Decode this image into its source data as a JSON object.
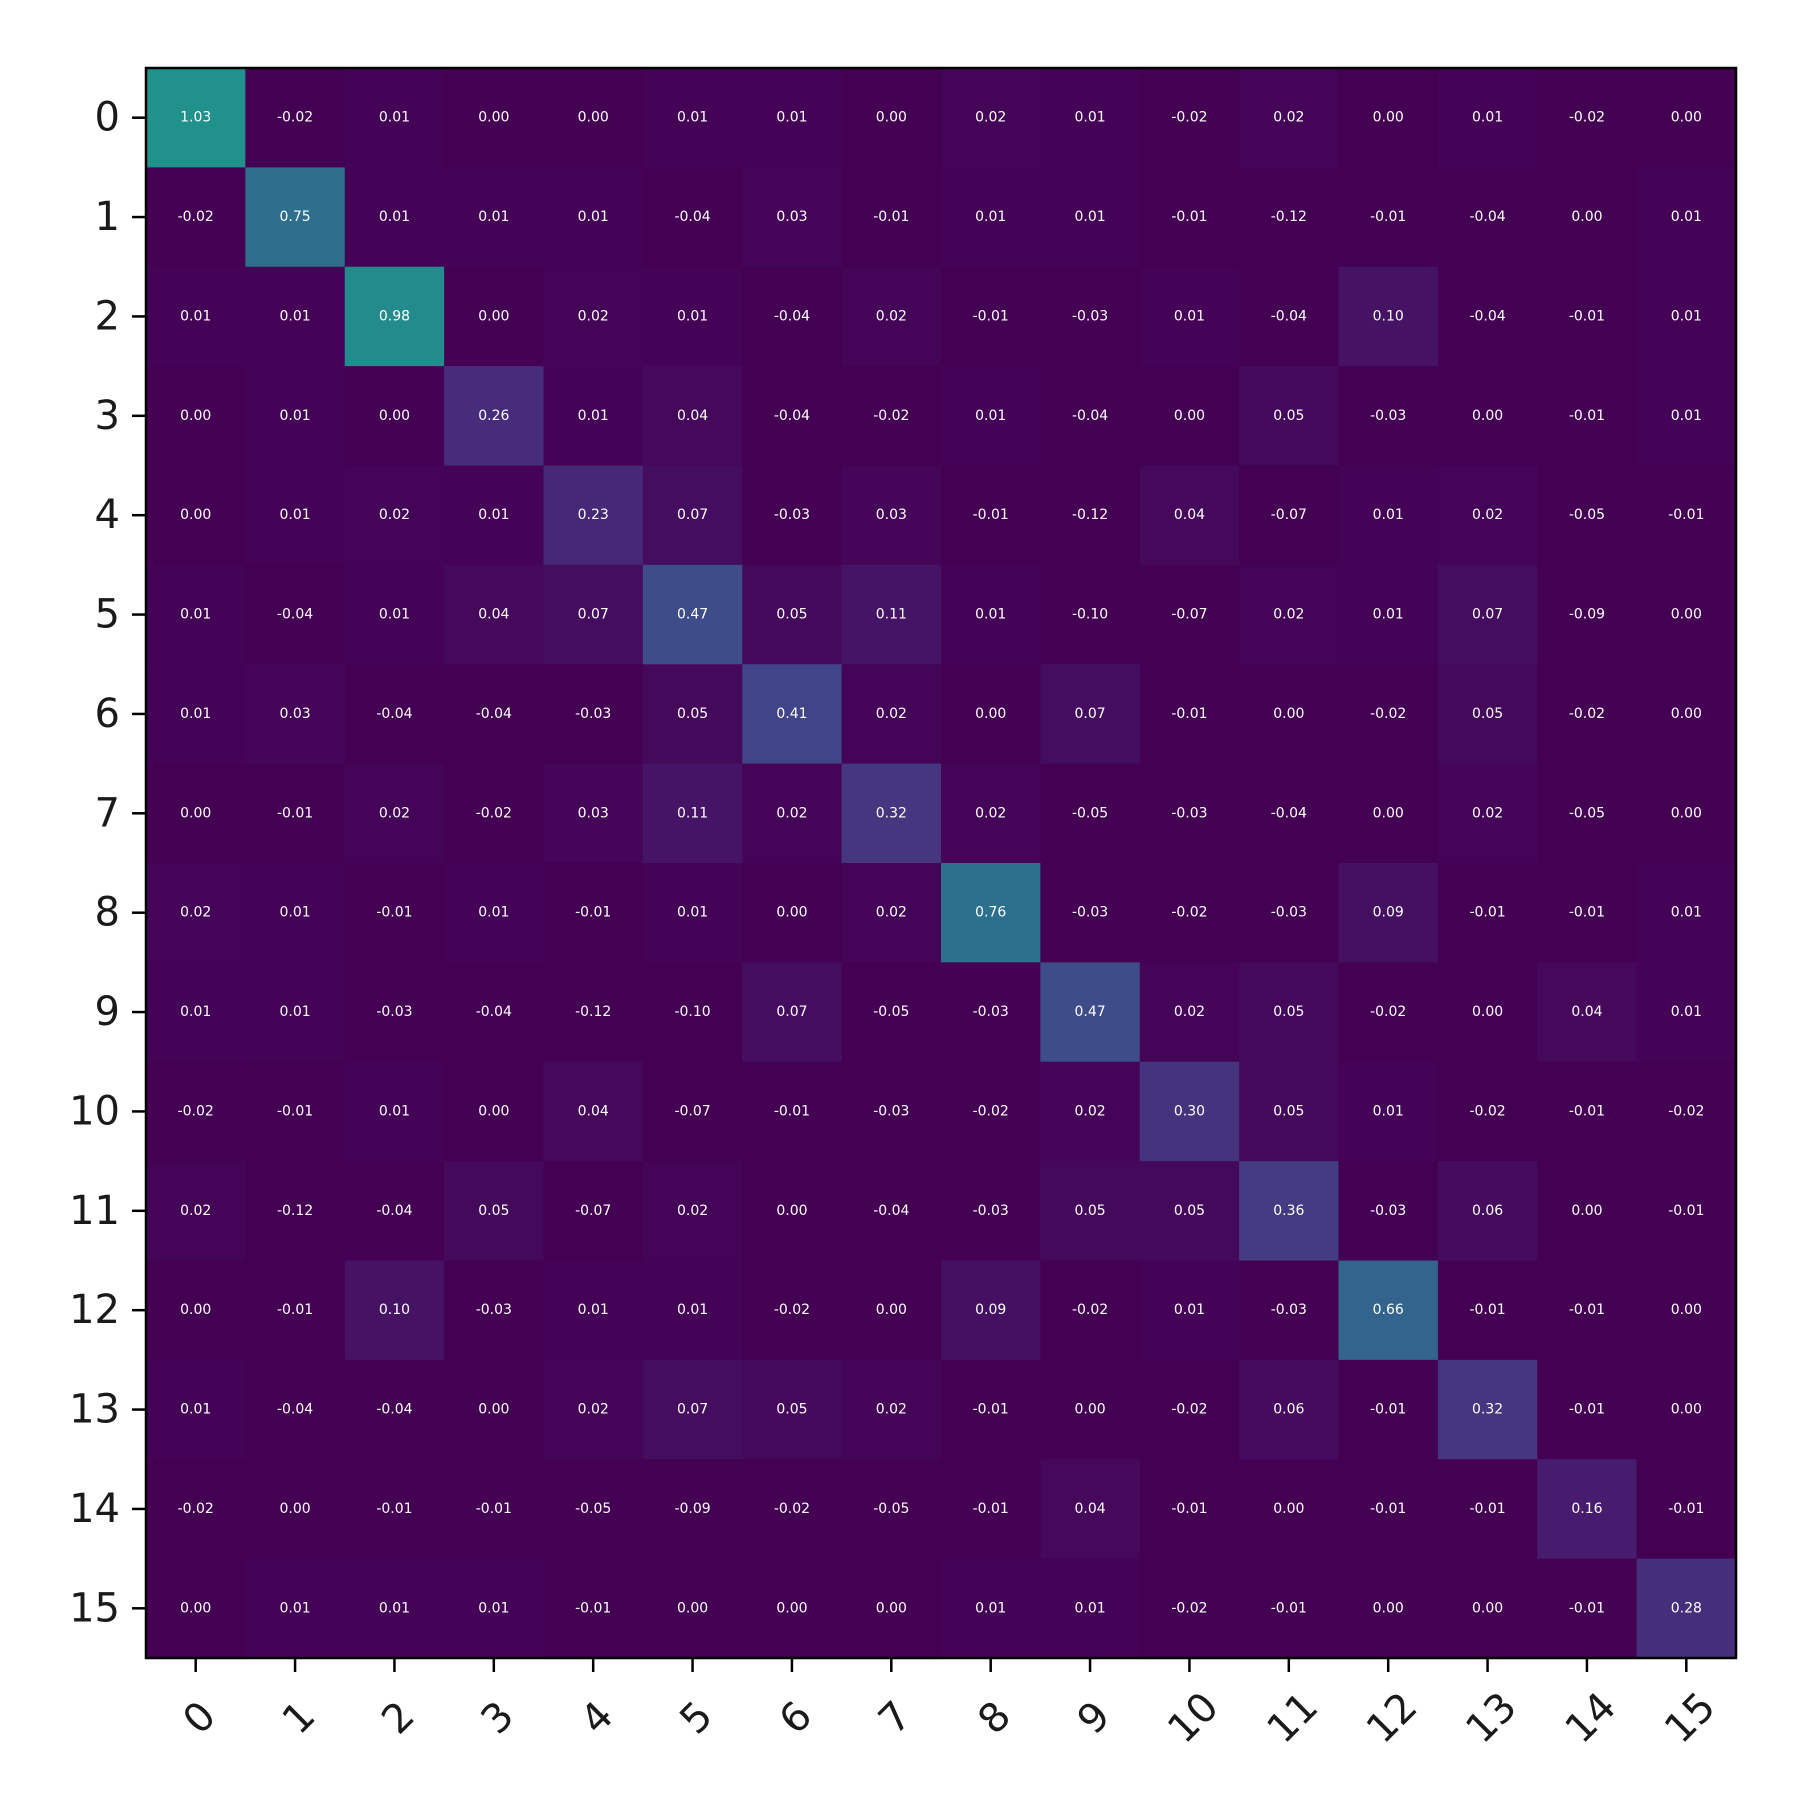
{
  "chart_data": {
    "type": "heatmap",
    "title": "",
    "xlabel": "",
    "ylabel": "",
    "x_tick_labels": [
      "0",
      "1",
      "2",
      "3",
      "4",
      "5",
      "6",
      "7",
      "8",
      "9",
      "10",
      "11",
      "12",
      "13",
      "14",
      "15"
    ],
    "y_tick_labels": [
      "0",
      "1",
      "2",
      "3",
      "4",
      "5",
      "6",
      "7",
      "8",
      "9",
      "10",
      "11",
      "12",
      "13",
      "14",
      "15"
    ],
    "x_tick_rotation_deg": 45,
    "colormap": "viridis",
    "value_format": "2 decimals",
    "grid": false,
    "values": [
      [
        1.03,
        -0.02,
        0.01,
        -0.0,
        0.0,
        0.01,
        0.01,
        0.0,
        0.02,
        0.01,
        -0.02,
        0.02,
        -0.0,
        0.01,
        -0.02,
        0.0
      ],
      [
        -0.02,
        0.75,
        0.01,
        0.01,
        0.01,
        -0.04,
        0.03,
        -0.01,
        0.01,
        0.01,
        -0.01,
        -0.12,
        -0.01,
        -0.04,
        -0.0,
        0.01
      ],
      [
        0.01,
        0.01,
        0.98,
        0.0,
        0.02,
        0.01,
        -0.04,
        0.02,
        -0.01,
        -0.03,
        0.01,
        -0.04,
        0.1,
        -0.04,
        -0.01,
        0.01
      ],
      [
        -0.0,
        0.01,
        0.0,
        0.26,
        0.01,
        0.04,
        -0.04,
        -0.02,
        0.01,
        -0.04,
        0.0,
        0.05,
        -0.03,
        0.0,
        -0.01,
        0.01
      ],
      [
        0.0,
        0.01,
        0.02,
        0.01,
        0.23,
        0.07,
        -0.03,
        0.03,
        -0.01,
        -0.12,
        0.04,
        -0.07,
        0.01,
        0.02,
        -0.05,
        -0.01
      ],
      [
        0.01,
        -0.04,
        0.01,
        0.04,
        0.07,
        0.47,
        0.05,
        0.11,
        0.01,
        -0.1,
        -0.07,
        0.02,
        0.01,
        0.07,
        -0.09,
        0.0
      ],
      [
        0.01,
        0.03,
        -0.04,
        -0.04,
        -0.03,
        0.05,
        0.41,
        0.02,
        -0.0,
        0.07,
        -0.01,
        0.0,
        -0.02,
        0.05,
        -0.02,
        -0.0
      ],
      [
        0.0,
        -0.01,
        0.02,
        -0.02,
        0.03,
        0.11,
        0.02,
        0.32,
        0.02,
        -0.05,
        -0.03,
        -0.04,
        0.0,
        0.02,
        -0.05,
        -0.0
      ],
      [
        0.02,
        0.01,
        -0.01,
        0.01,
        -0.01,
        0.01,
        -0.0,
        0.02,
        0.76,
        -0.03,
        -0.02,
        -0.03,
        0.09,
        -0.01,
        -0.01,
        0.01
      ],
      [
        0.01,
        0.01,
        -0.03,
        -0.04,
        -0.12,
        -0.1,
        0.07,
        -0.05,
        -0.03,
        0.47,
        0.02,
        0.05,
        -0.02,
        -0.0,
        0.04,
        0.01
      ],
      [
        -0.02,
        -0.01,
        0.01,
        0.0,
        0.04,
        -0.07,
        -0.01,
        -0.03,
        -0.02,
        0.02,
        0.3,
        0.05,
        0.01,
        -0.02,
        -0.01,
        -0.02
      ],
      [
        0.02,
        -0.12,
        -0.04,
        0.05,
        -0.07,
        0.02,
        0.0,
        -0.04,
        -0.03,
        0.05,
        0.05,
        0.36,
        -0.03,
        0.06,
        0.0,
        -0.01
      ],
      [
        -0.0,
        -0.01,
        0.1,
        -0.03,
        0.01,
        0.01,
        -0.02,
        0.0,
        0.09,
        -0.02,
        0.01,
        -0.03,
        0.66,
        -0.01,
        -0.01,
        -0.0
      ],
      [
        0.01,
        -0.04,
        -0.04,
        0.0,
        0.02,
        0.07,
        0.05,
        0.02,
        -0.01,
        -0.0,
        -0.02,
        0.06,
        -0.01,
        0.32,
        -0.01,
        -0.0
      ],
      [
        -0.02,
        -0.0,
        -0.01,
        -0.01,
        -0.05,
        -0.09,
        -0.02,
        -0.05,
        -0.01,
        0.04,
        -0.01,
        0.0,
        -0.01,
        -0.01,
        0.16,
        -0.01
      ],
      [
        0.0,
        0.01,
        0.01,
        0.01,
        -0.01,
        0.0,
        -0.0,
        -0.0,
        0.01,
        0.01,
        -0.02,
        -0.01,
        -0.0,
        -0.0,
        -0.01,
        0.28
      ]
    ]
  }
}
